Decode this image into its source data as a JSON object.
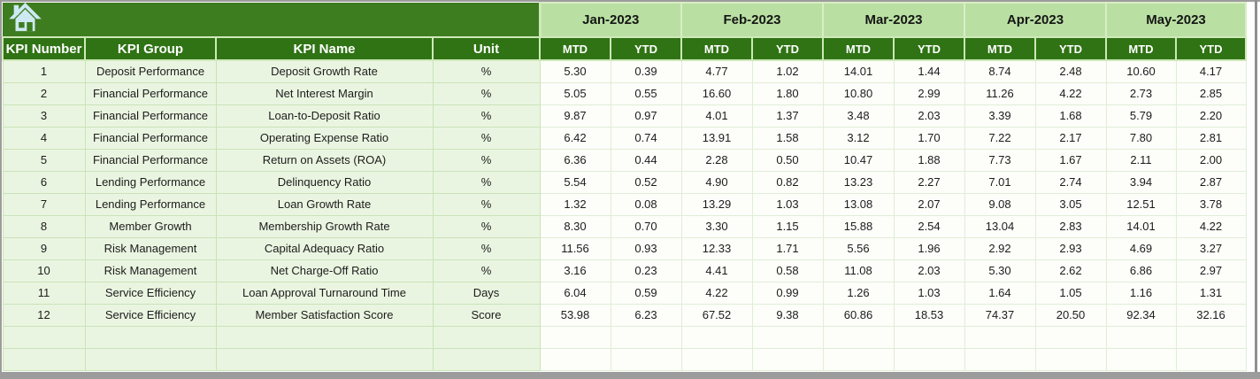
{
  "toolbar": {
    "home_icon": "home-icon"
  },
  "table": {
    "left_headers": [
      "KPI Number",
      "KPI Group",
      "KPI Name",
      "Unit"
    ],
    "months": [
      "Jan-2023",
      "Feb-2023",
      "Mar-2023",
      "Apr-2023",
      "May-2023"
    ],
    "sub_headers": [
      "MTD",
      "YTD"
    ],
    "rows": [
      {
        "kpi_number": "1",
        "kpi_group": "Deposit Performance",
        "kpi_name": "Deposit Growth Rate",
        "unit": "%",
        "values": [
          "5.30",
          "0.39",
          "4.77",
          "1.02",
          "14.01",
          "1.44",
          "8.74",
          "2.48",
          "10.60",
          "4.17"
        ]
      },
      {
        "kpi_number": "2",
        "kpi_group": "Financial Performance",
        "kpi_name": "Net Interest Margin",
        "unit": "%",
        "values": [
          "5.05",
          "0.55",
          "16.60",
          "1.80",
          "10.80",
          "2.99",
          "11.26",
          "4.22",
          "2.73",
          "2.85"
        ]
      },
      {
        "kpi_number": "3",
        "kpi_group": "Financial Performance",
        "kpi_name": "Loan-to-Deposit Ratio",
        "unit": "%",
        "values": [
          "9.87",
          "0.97",
          "4.01",
          "1.37",
          "3.48",
          "2.03",
          "3.39",
          "1.68",
          "5.79",
          "2.20"
        ]
      },
      {
        "kpi_number": "4",
        "kpi_group": "Financial Performance",
        "kpi_name": "Operating Expense Ratio",
        "unit": "%",
        "values": [
          "6.42",
          "0.74",
          "13.91",
          "1.58",
          "3.12",
          "1.70",
          "7.22",
          "2.17",
          "7.80",
          "2.81"
        ]
      },
      {
        "kpi_number": "5",
        "kpi_group": "Financial Performance",
        "kpi_name": "Return on Assets (ROA)",
        "unit": "%",
        "values": [
          "6.36",
          "0.44",
          "2.28",
          "0.50",
          "10.47",
          "1.88",
          "7.73",
          "1.67",
          "2.11",
          "2.00"
        ]
      },
      {
        "kpi_number": "6",
        "kpi_group": "Lending Performance",
        "kpi_name": "Delinquency Ratio",
        "unit": "%",
        "values": [
          "5.54",
          "0.52",
          "4.90",
          "0.82",
          "13.23",
          "2.27",
          "7.01",
          "2.74",
          "3.94",
          "2.87"
        ]
      },
      {
        "kpi_number": "7",
        "kpi_group": "Lending Performance",
        "kpi_name": "Loan Growth Rate",
        "unit": "%",
        "values": [
          "1.32",
          "0.08",
          "13.29",
          "1.03",
          "13.08",
          "2.07",
          "9.08",
          "3.05",
          "12.51",
          "3.78"
        ]
      },
      {
        "kpi_number": "8",
        "kpi_group": "Member Growth",
        "kpi_name": "Membership Growth Rate",
        "unit": "%",
        "values": [
          "8.30",
          "0.70",
          "3.30",
          "1.15",
          "15.88",
          "2.54",
          "13.04",
          "2.83",
          "14.01",
          "4.22"
        ]
      },
      {
        "kpi_number": "9",
        "kpi_group": "Risk Management",
        "kpi_name": "Capital Adequacy Ratio",
        "unit": "%",
        "values": [
          "11.56",
          "0.93",
          "12.33",
          "1.71",
          "5.56",
          "1.96",
          "2.92",
          "2.93",
          "4.69",
          "3.27"
        ]
      },
      {
        "kpi_number": "10",
        "kpi_group": "Risk Management",
        "kpi_name": "Net Charge-Off Ratio",
        "unit": "%",
        "values": [
          "3.16",
          "0.23",
          "4.41",
          "0.58",
          "11.08",
          "2.03",
          "5.30",
          "2.62",
          "6.86",
          "2.97"
        ]
      },
      {
        "kpi_number": "11",
        "kpi_group": "Service Efficiency",
        "kpi_name": "Loan Approval Turnaround Time",
        "unit": "Days",
        "values": [
          "6.04",
          "0.59",
          "4.22",
          "0.99",
          "1.26",
          "1.03",
          "1.64",
          "1.05",
          "1.16",
          "1.31"
        ]
      },
      {
        "kpi_number": "12",
        "kpi_group": "Service Efficiency",
        "kpi_name": "Member Satisfaction Score",
        "unit": "Score",
        "values": [
          "53.98",
          "6.23",
          "67.52",
          "9.38",
          "60.86",
          "18.53",
          "74.37",
          "20.50",
          "92.34",
          "32.16"
        ]
      }
    ],
    "empty_rows": 2
  },
  "colors": {
    "banner_green": "#3e7c20",
    "header_dark_green": "#2f7314",
    "month_header_green": "#b9e0a2",
    "left_cell_green": "#eaf5e1",
    "value_cell_white": "#fdfdfa",
    "header_text": "#ffffff",
    "body_text": "#1c1c1c",
    "home_icon_blue": "#cde9f2",
    "window_edge_gray": "#9c9c9c"
  }
}
